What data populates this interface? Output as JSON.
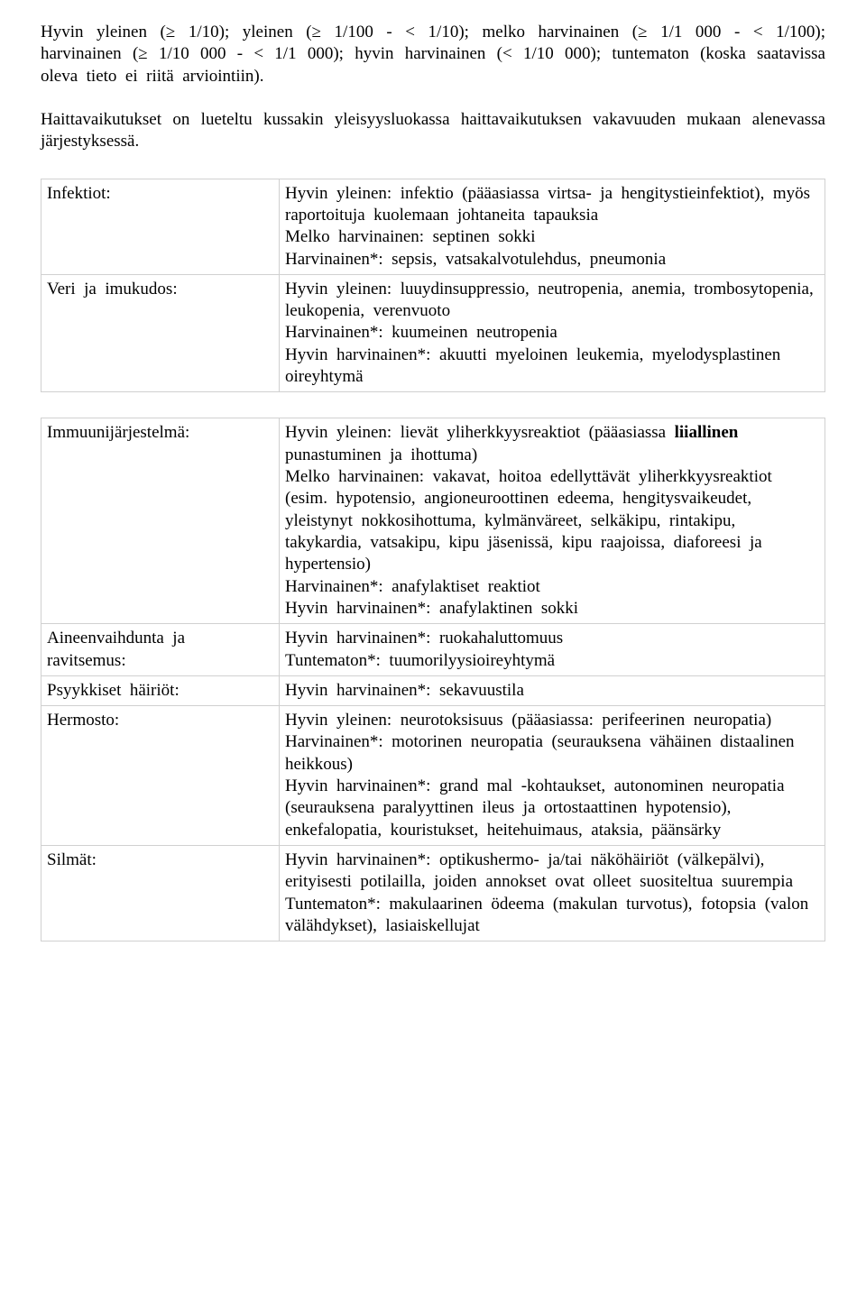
{
  "intro": {
    "p1": "Hyvin yleinen (≥ 1/10); yleinen (≥ 1/100 - < 1/10); melko harvinainen (≥ 1/1 000 - < 1/100); harvinainen (≥ 1/10 000 - < 1/1 000); hyvin harvinainen (< 1/10 000); tuntematon (koska saatavissa oleva tieto ei riitä arviointiin).",
    "p2": "Haittavaikutukset on lueteltu kussakin yleisyysluokassa haittavaikutuksen vakavuuden mukaan alenevassa järjestyksessä."
  },
  "groups": [
    {
      "rows": [
        {
          "label": "Infektiot:",
          "content_pre": "Hyvin yleinen: infektio (pääasiassa virtsa- ja hengitystieinfektiot), myös raportoituja kuolemaan johtaneita tapauksia\nMelko harvinainen: septinen sokki\nHarvinainen*: sepsis, vatsakalvotulehdus, pneumonia",
          "content_bold": "",
          "content_post": ""
        },
        {
          "label": "Veri ja imukudos:",
          "content_pre": "Hyvin yleinen: luuydinsuppressio, neutropenia, anemia, trombosytopenia, leukopenia, verenvuoto\nHarvinainen*: kuumeinen neutropenia\nHyvin harvinainen*: akuutti myeloinen leukemia, myelodysplastinen oireyhtymä",
          "content_bold": "",
          "content_post": ""
        }
      ]
    },
    {
      "rows": [
        {
          "label": "Immuunijärjestelmä:",
          "content_pre": "Hyvin yleinen: lievät yliherkkyysreaktiot (pääasiassa ",
          "content_bold": "liiallinen",
          "content_post": " punastuminen ja ihottuma)\nMelko harvinainen: vakavat, hoitoa edellyttävät yliherkkyysreaktiot (esim. hypotensio, angioneuroottinen edeema, hengitysvaikeudet, yleistynyt nokkosihottuma, kylmänväreet, selkäkipu, rintakipu, takykardia, vatsakipu, kipu jäsenissä, kipu raajoissa, diaforeesi ja hypertensio)\nHarvinainen*: anafylaktiset reaktiot\nHyvin harvinainen*: anafylaktinen sokki"
        },
        {
          "label": "Aineenvaihdunta ja ravitsemus:",
          "content_pre": "Hyvin harvinainen*: ruokahaluttomuus\nTuntematon*: tuumorilyysioireyhtymä",
          "content_bold": "",
          "content_post": ""
        },
        {
          "label": "Psyykkiset häiriöt:",
          "content_pre": "Hyvin harvinainen*: sekavuustila",
          "content_bold": "",
          "content_post": ""
        },
        {
          "label": "Hermosto:",
          "content_pre": "Hyvin yleinen: neurotoksisuus (pääasiassa: perifeerinen neuropatia)\nHarvinainen*: motorinen neuropatia (seurauksena vähäinen distaalinen heikkous)\nHyvin harvinainen*: grand mal -kohtaukset, autonominen neuropatia (seurauksena paralyyttinen ileus ja ortostaattinen hypotensio), enkefalopatia, kouristukset, heitehuimaus, ataksia, päänsärky",
          "content_bold": "",
          "content_post": ""
        },
        {
          "label": "Silmät:",
          "content_pre": "Hyvin harvinainen*: optikushermo- ja/tai näköhäiriöt (välkepälvi), erityisesti potilailla, joiden annokset ovat olleet suositeltua suurempia\nTuntematon*: makulaarinen ödeema (makulan turvotus), fotopsia (valon välähdykset), lasiaiskellujat",
          "content_bold": "",
          "content_post": ""
        }
      ]
    }
  ]
}
